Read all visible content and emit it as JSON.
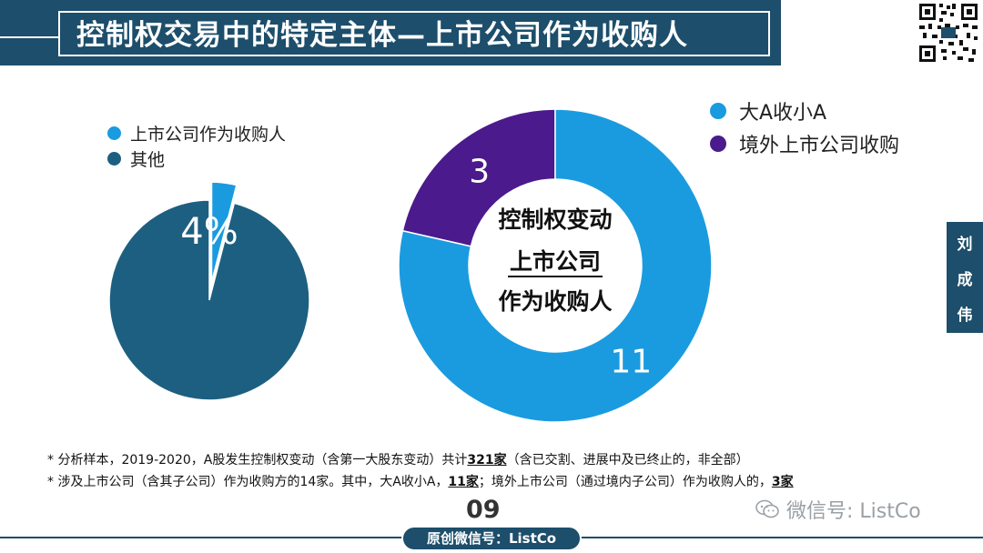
{
  "header": {
    "title": "控制权交易中的特定主体—上市公司作为收购人"
  },
  "colors": {
    "dark": "#1d5f80",
    "light": "#1a9bdf",
    "purple": "#4b1a8c",
    "navy": "#1d4e6b"
  },
  "side_tab": {
    "chars": [
      "刘",
      "成",
      "伟"
    ]
  },
  "chart_data": [
    {
      "type": "pie",
      "title": "",
      "legend": [
        {
          "name": "上市公司作为收购人",
          "color": "#1a9bdf"
        },
        {
          "name": "其他",
          "color": "#1d5f80"
        }
      ],
      "slices": [
        {
          "name": "上市公司作为收购人",
          "value": 4,
          "color": "#1a9bdf",
          "label": "4%"
        },
        {
          "name": "其他",
          "value": 96,
          "color": "#1d5f80",
          "label": ""
        }
      ]
    },
    {
      "type": "pie",
      "donut": true,
      "center_label": [
        "控制权变动",
        "上市公司",
        "作为收购人"
      ],
      "legend": [
        {
          "name": "大A收小A",
          "color": "#1a9bdf"
        },
        {
          "name": "境外上市公司收购",
          "color": "#4b1a8c"
        }
      ],
      "slices": [
        {
          "name": "大A收小A",
          "value": 11,
          "color": "#1a9bdf",
          "label": "11"
        },
        {
          "name": "境外上市公司收购",
          "value": 3,
          "color": "#4b1a8c",
          "label": "3"
        }
      ]
    }
  ],
  "footnotes": {
    "line1_prefix": "* 分析样本，2019-2020，A股发生控制权变动（含第一大股东变动）共计",
    "line1_bold": "321家",
    "line1_suffix": "（含已交割、进展中及已终止的，非全部）",
    "line2_prefix": "* 涉及上市公司（含其子公司）作为收购方的14家。其中，大A收小A，",
    "line2_bold1": "11家",
    "line2_mid": "；境外上市公司（通过境内子公司）作为收购人的，",
    "line2_bold2": "3家"
  },
  "page_number": "09",
  "footer": {
    "label": "原创微信号：ListCo"
  },
  "watermark": {
    "text": "微信号: ListCo"
  }
}
